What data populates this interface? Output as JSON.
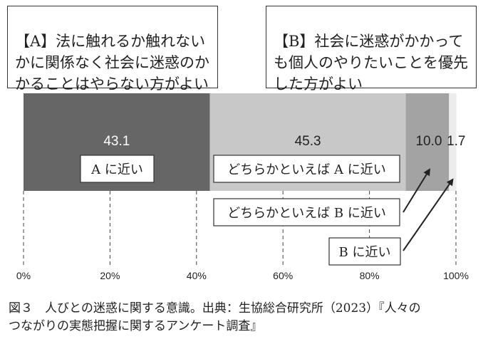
{
  "statement_a": "【A】法に触れるか触れない\nかに関係なく社会に迷惑のか\nかることはやらない方がよい",
  "statement_b": "【B】社会に迷惑がかかって\nも個人のやりたいことを優先\nした方がよい",
  "caption": "図３　人びとの迷惑に関する意識。出典：生協総合研究所（2023）『人々の\nつながりの実態把握に関するアンケート調査』",
  "chart_data": {
    "type": "bar",
    "orientation": "horizontal-stacked",
    "unit": "%",
    "xlim": [
      0,
      100
    ],
    "x_ticks": [
      "0%",
      "20%",
      "40%",
      "60%",
      "80%",
      "100%"
    ],
    "grid": "vertical dashed",
    "series": [
      {
        "name": "A に近い",
        "value": 43.1,
        "value_label": "43.1",
        "color": "#666666",
        "label_color": "#ffffff"
      },
      {
        "name": "どちらかといえば A に近い",
        "value": 45.3,
        "value_label": "45.3",
        "color": "#c8c8c8",
        "label_color": "#222222"
      },
      {
        "name": "どちらかといえば B に近い",
        "value": 10.0,
        "value_label": "10.0",
        "color": "#a3a3a3",
        "label_color": "#222222"
      },
      {
        "name": "B に近い",
        "value": 1.7,
        "value_label": "1.7",
        "color": "#ececec",
        "label_color": "#222222"
      }
    ]
  }
}
